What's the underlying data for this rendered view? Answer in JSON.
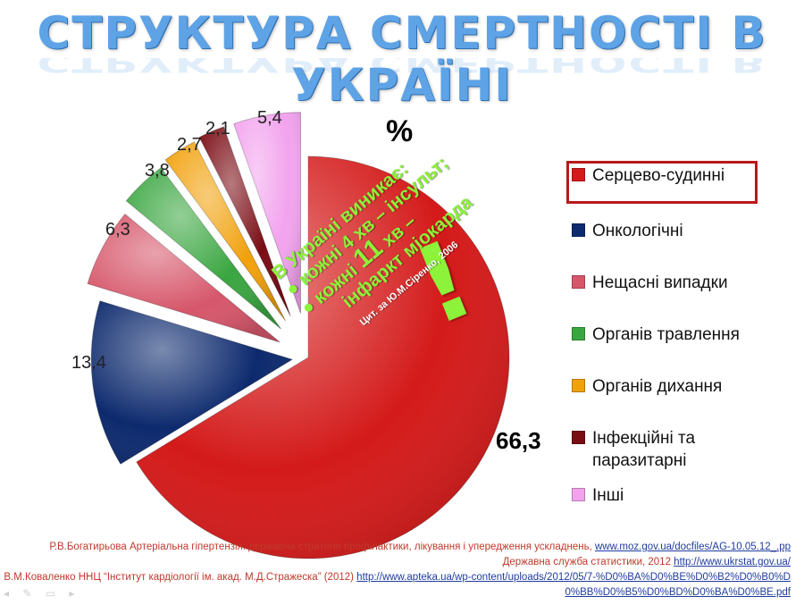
{
  "title": "СТРУКТУРА СМЕРТНОСТІ В УКРАЇНІ",
  "unit": "%",
  "chart_data": {
    "type": "pie",
    "title": "",
    "labels": [
      "Серцево-судинні",
      "Онкологічні",
      "Нещасні випадки",
      "Органів травлення",
      "Органів дихання",
      "Інфекційні та паразитарні",
      "Інші"
    ],
    "values": [
      66.3,
      13.4,
      6.3,
      3.8,
      2.7,
      2.1,
      5.4
    ],
    "value_labels": [
      "66,3",
      "13,4",
      "6,3",
      "3,8",
      "2,7",
      "2,1",
      "5,4"
    ],
    "colors": [
      "#d41a1a",
      "#0d2a6e",
      "#d6566a",
      "#3aa640",
      "#f1a10c",
      "#7a0c14",
      "#f3a3ee"
    ],
    "legend_position": "right",
    "highlighted": "Серцево-судинні"
  },
  "note": {
    "line1": "В Україні виникає:",
    "line2": "● кожні 4 хв – інсульт;",
    "line3_pre": "● кожні ",
    "line3_num": "11",
    "line3_post": " хв –",
    "line4": "інфаркт міокарда",
    "citation": "Цит. за Ю.М.Сіренко, 2006",
    "exclamation": "!"
  },
  "sources": {
    "s1_text": "Р.В.Богатирьова Артеріальна гіпертензія: державна стратегія профілактики, лікування і упередження ускладнень, ",
    "s1_link": "www.moz.gov.ua/docfiles/AG-10.05.12_.pp",
    "s2_text": " Державна служба статистики, 2012 ",
    "s2_link": "http://www.ukrstat.gov.ua/",
    "s3_text": "В.М.Коваленко ННЦ “Інститут кардіології ім. акад. М.Д.Стражеска” (2012) ",
    "s3_link": "http://www.apteka.ua/wp-content/uploads/2012/05/7-%D0%BA%D0%BE%D0%B2%D0%B0%D0%BB%D0%B5%D0%BD%D0%BA%D0%BE.pdf"
  }
}
